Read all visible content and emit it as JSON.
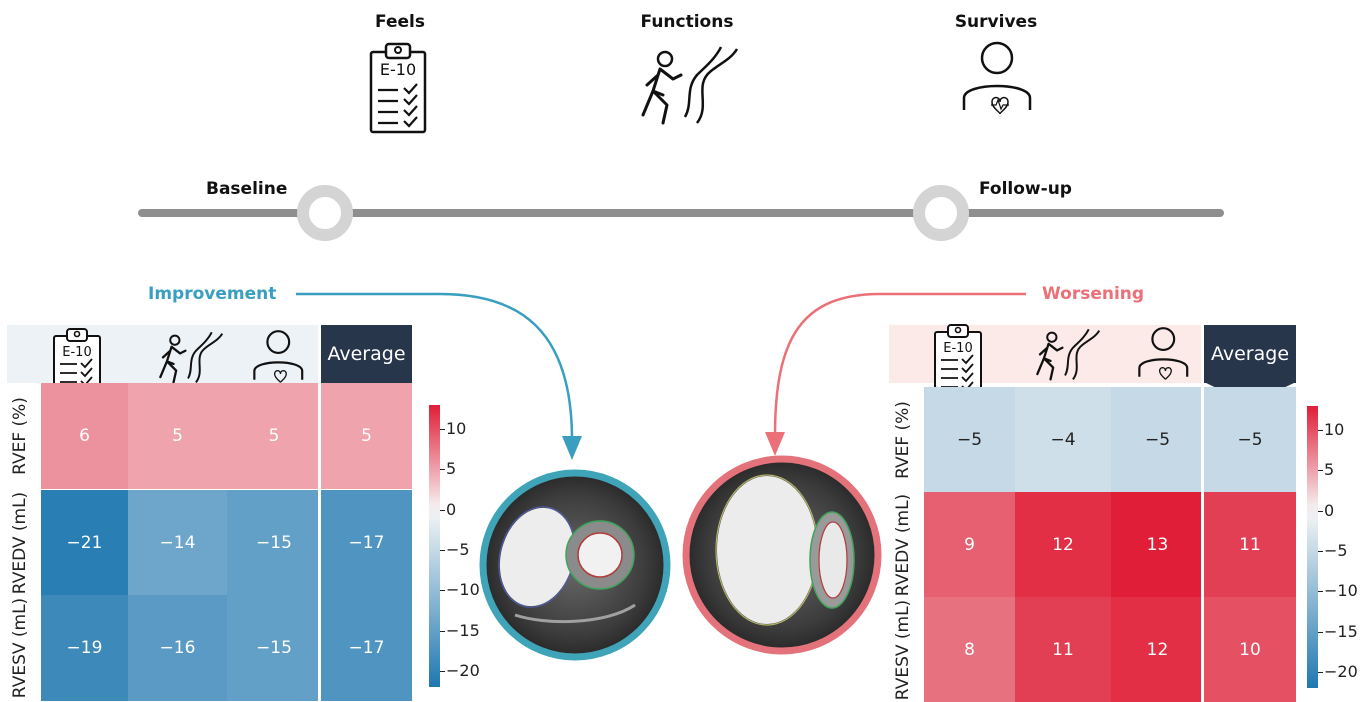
{
  "outcomes": [
    {
      "label": "Feels",
      "icon": "clipboard-questionnaire-icon",
      "icon_text": "E-10"
    },
    {
      "label": "Functions",
      "icon": "walking-person-path-icon"
    },
    {
      "label": "Survives",
      "icon": "person-heart-icon"
    }
  ],
  "timeline": {
    "baseline_label": "Baseline",
    "followup_label": "Follow-up"
  },
  "improvement": {
    "label": "Improvement",
    "color": "#3a9ec0",
    "average_label": "Average",
    "icon_text": "E-10",
    "rows": [
      {
        "label": "RVEF (%)",
        "values": [
          6,
          5,
          5
        ],
        "average": 5
      },
      {
        "label": "RVEDV (mL)",
        "values": [
          -21,
          -14,
          -15
        ],
        "average": -17
      },
      {
        "label": "RVESV (mL)",
        "values": [
          -19,
          -16,
          -15
        ],
        "average": -17
      }
    ]
  },
  "worsening": {
    "label": "Worsening",
    "color": "#ec7077",
    "average_label": "Average",
    "icon_text": "E-10",
    "rows": [
      {
        "label": "RVEF (%)",
        "values": [
          -5,
          -4,
          -5
        ],
        "average": -5
      },
      {
        "label": "RVEDV (mL)",
        "values": [
          9,
          12,
          13
        ],
        "average": 11
      },
      {
        "label": "RVESV (mL)",
        "values": [
          8,
          11,
          12
        ],
        "average": 10
      }
    ]
  },
  "colorbar": {
    "ticks": [
      "10",
      "5",
      "0",
      "−5",
      "−10",
      "−15",
      "−20"
    ],
    "tick_values": [
      10,
      5,
      0,
      -5,
      -10,
      -15,
      -20
    ],
    "range": [
      -22,
      13
    ]
  }
}
